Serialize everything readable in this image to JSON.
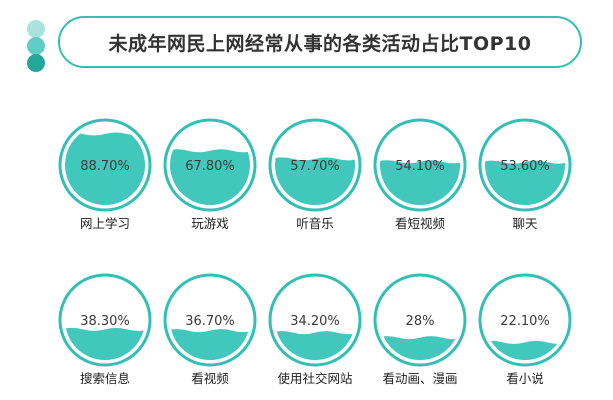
{
  "header": {
    "title": "未成年网民上网经常从事的各类活动占比TOP10",
    "dot_colors": [
      "#a8e3de",
      "#5fcdc3",
      "#25a69a"
    ]
  },
  "colors": {
    "accent": "#33bfb4",
    "fill": "#41c7bb"
  },
  "chart_data": {
    "type": "bar",
    "title": "未成年网民上网经常从事的各类活动占比TOP10",
    "unit": "%",
    "ylim": [
      0,
      100
    ],
    "categories": [
      "网上学习",
      "玩游戏",
      "听音乐",
      "看短视频",
      "聊天",
      "搜索信息",
      "看视频",
      "使用社交网站",
      "看动画、漫画",
      "看小说"
    ],
    "values": [
      88.7,
      67.8,
      57.7,
      54.1,
      53.6,
      38.3,
      36.7,
      34.2,
      28,
      22.1
    ],
    "value_labels": [
      "88.70%",
      "67.80%",
      "57.70%",
      "54.10%",
      "53.60%",
      "38.30%",
      "36.70%",
      "34.20%",
      "28%",
      "22.10%"
    ]
  }
}
